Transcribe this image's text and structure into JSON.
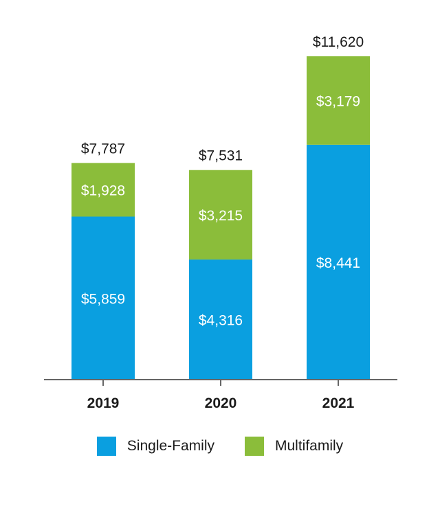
{
  "chart_data": {
    "type": "bar",
    "stacked": true,
    "categories": [
      "2019",
      "2020",
      "2021"
    ],
    "series": [
      {
        "name": "Single-Family",
        "color": "#0a9fe0",
        "values": [
          5859,
          4316,
          8441
        ],
        "labels": [
          "$5,859",
          "$4,316",
          "$8,441"
        ]
      },
      {
        "name": "Multifamily",
        "color": "#8bbd3a",
        "values": [
          1928,
          3215,
          3179
        ],
        "labels": [
          "$1,928",
          "$3,215",
          "$3,179"
        ]
      }
    ],
    "totals": [
      7787,
      7531,
      11620
    ],
    "total_labels": [
      "$7,787",
      "$7,531",
      "$11,620"
    ],
    "ylim": [
      0,
      12000
    ],
    "grid": false,
    "legend_position": "bottom"
  }
}
